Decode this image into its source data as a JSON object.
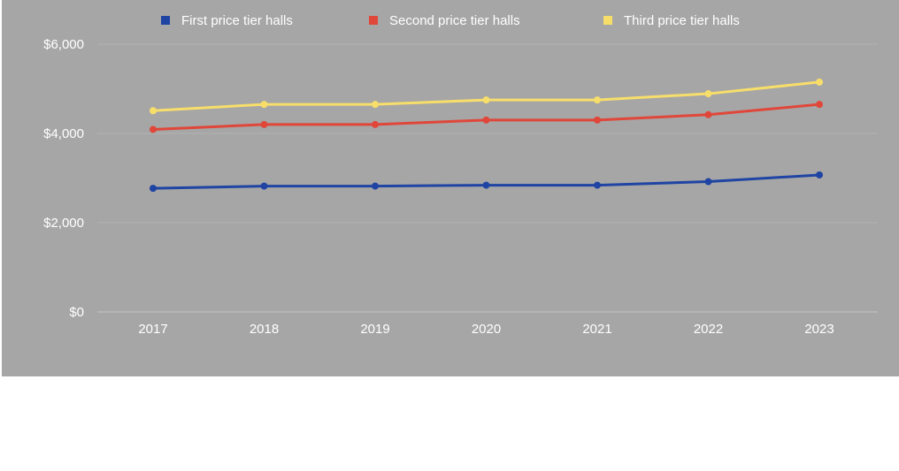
{
  "chart_data": {
    "type": "line",
    "title": "",
    "xlabel": "",
    "ylabel": "",
    "categories": [
      "2017",
      "2018",
      "2019",
      "2020",
      "2021",
      "2022",
      "2023"
    ],
    "y_ticks": [
      "$0",
      "$2,000",
      "$4,000",
      "$6,000"
    ],
    "ylim": [
      0,
      6000
    ],
    "grid": true,
    "legend_position": "top",
    "background_color": "#a6a6a6",
    "series": [
      {
        "name": "First price tier halls",
        "color": "#1f44a3",
        "values": [
          2770,
          2820,
          2820,
          2840,
          2840,
          2920,
          3070
        ]
      },
      {
        "name": "Second price tier halls",
        "color": "#e0473a",
        "values": [
          4090,
          4200,
          4200,
          4300,
          4300,
          4420,
          4650
        ]
      },
      {
        "name": "Third price tier halls",
        "color": "#f7de6b",
        "values": [
          4510,
          4650,
          4650,
          4750,
          4750,
          4890,
          5150
        ]
      }
    ]
  }
}
